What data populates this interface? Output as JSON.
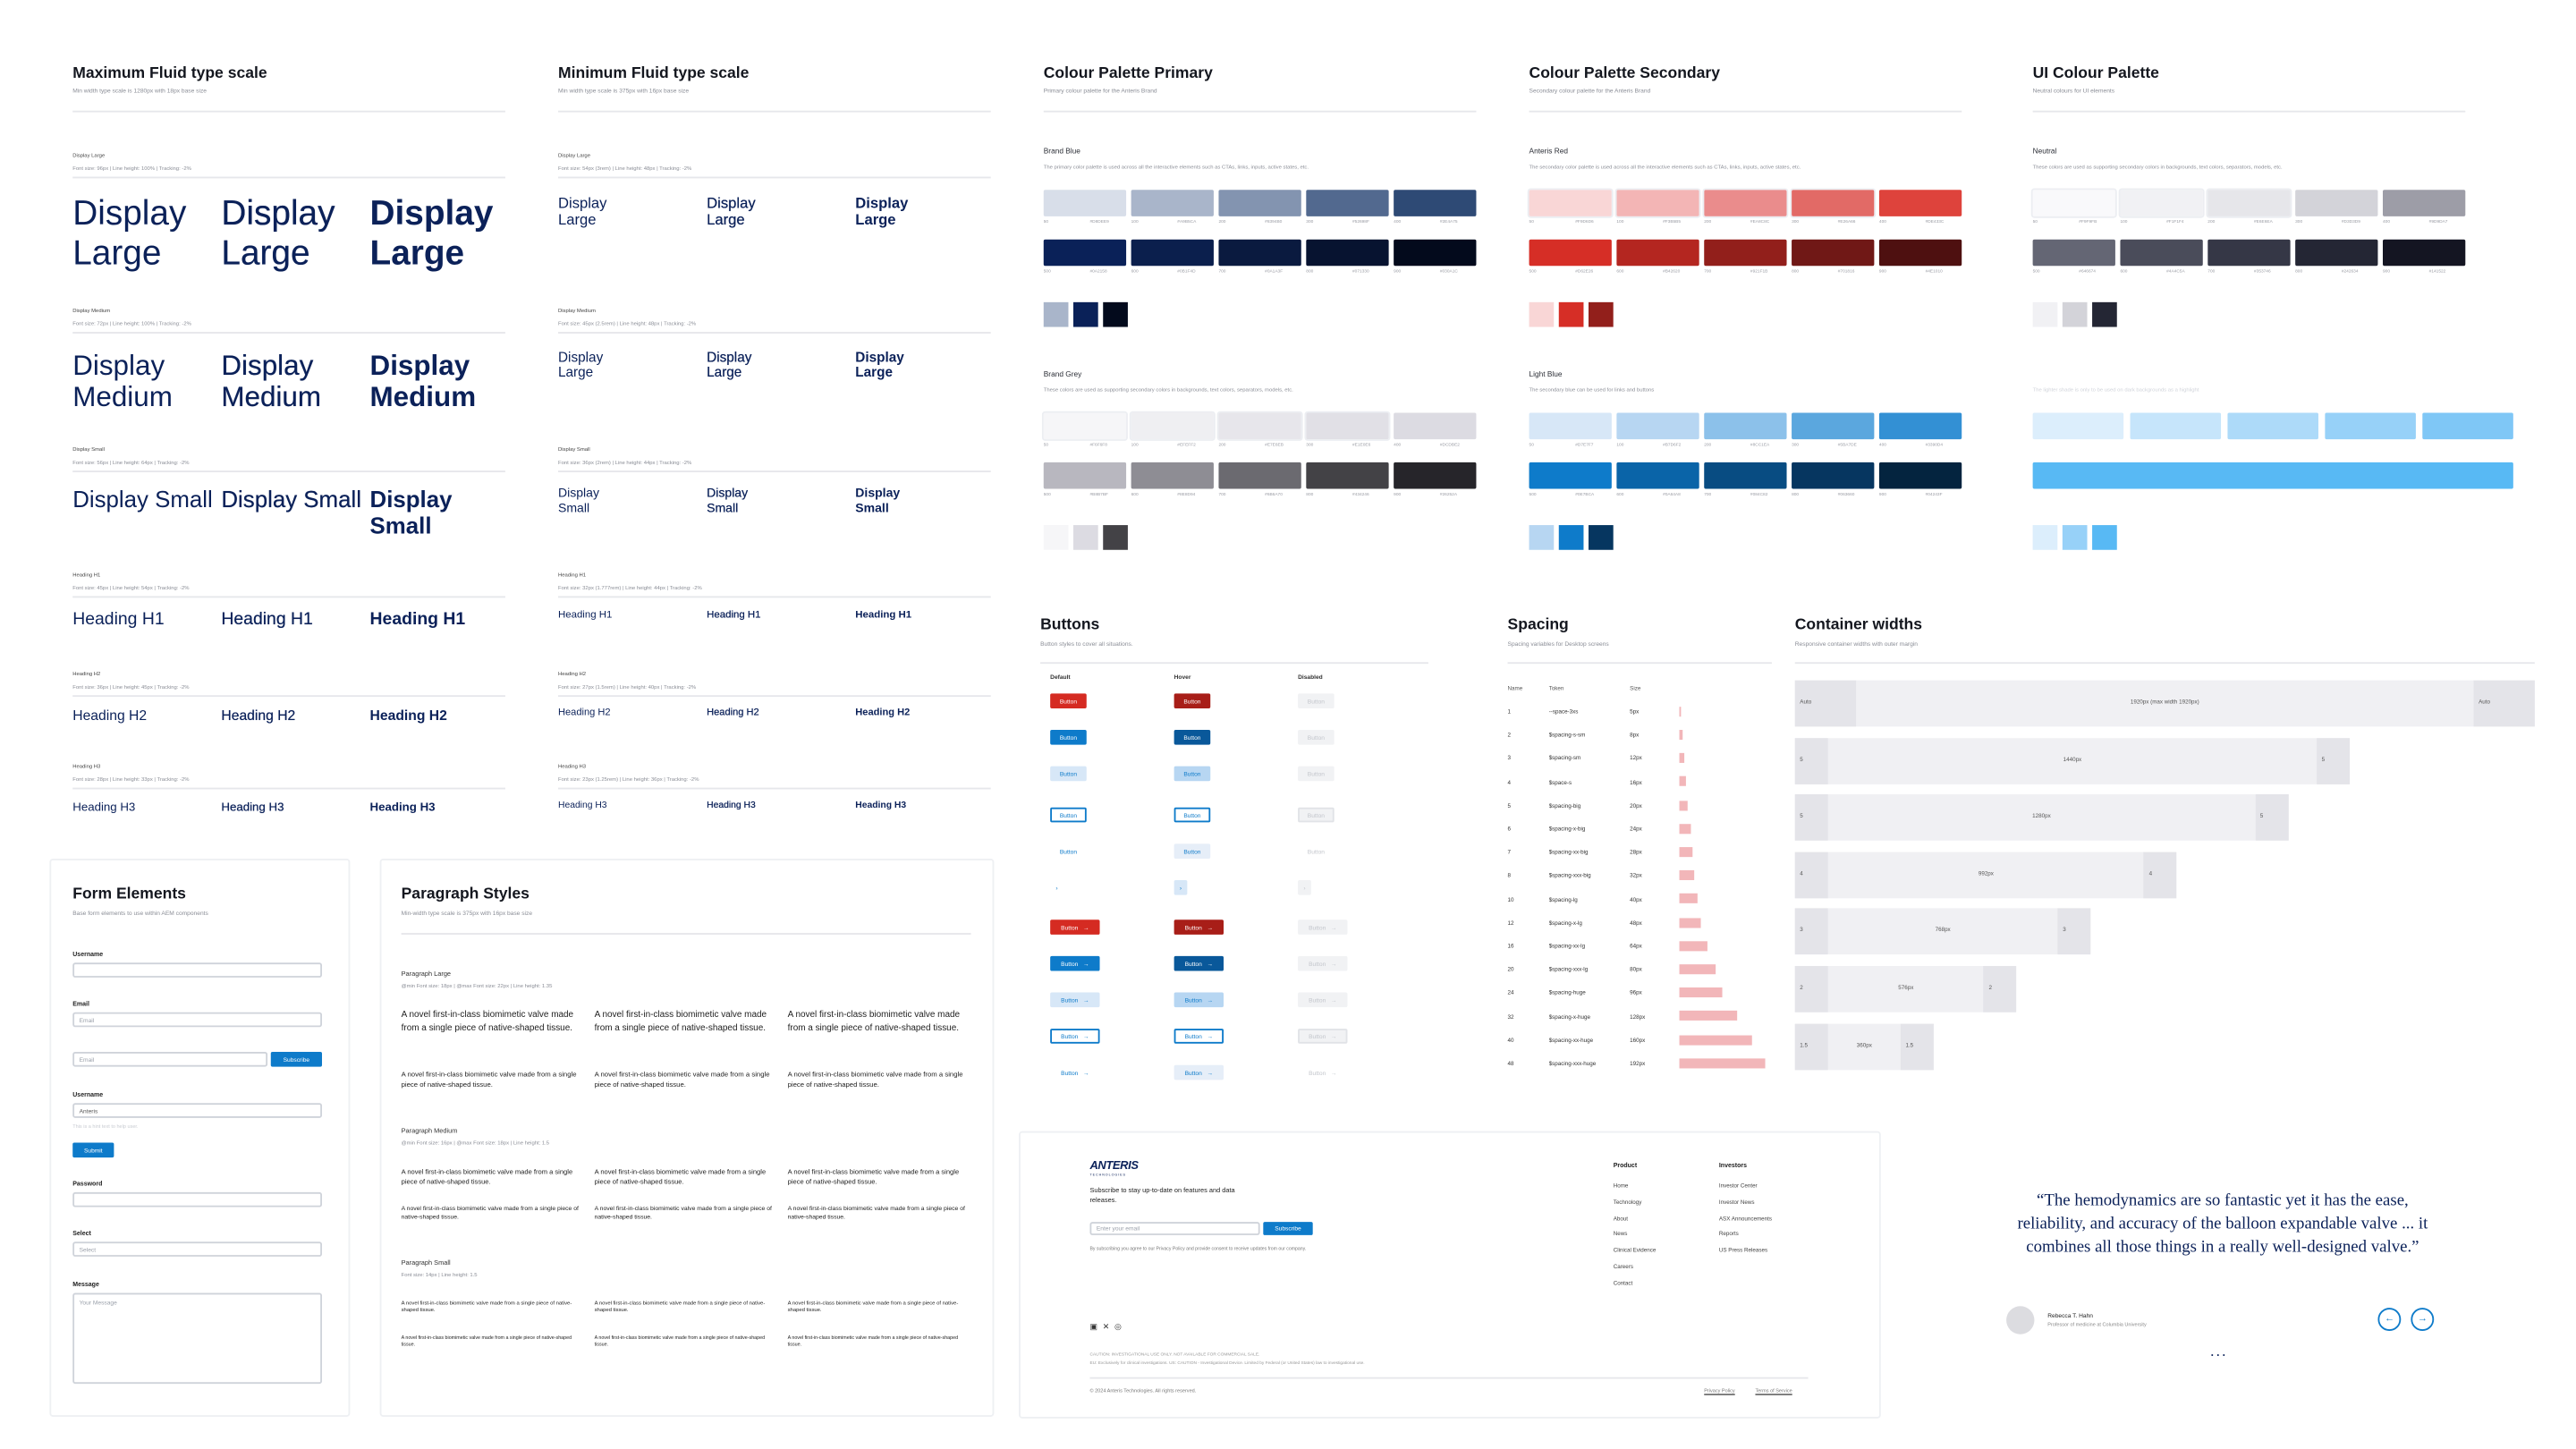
{
  "type_scales": [
    {
      "title": "Maximum Fluid type scale",
      "subtitle": "Min width type scale is 1280px with 18px base size",
      "rows": [
        {
          "name": "Display Large",
          "spec": "Font size: 96px | Line height: 100% | Tracking: -2%",
          "sample": "Display Large"
        },
        {
          "name": "Display Medium",
          "spec": "Font size: 72px | Line height: 100% | Tracking: -2%",
          "sample": "Display Medium"
        },
        {
          "name": "Display Small",
          "spec": "Font size: 56px | Line height: 64px | Tracking: -2%",
          "sample": "Display Small"
        },
        {
          "name": "Heading H1",
          "spec": "Font size: 45px | Line height: 54px | Tracking: -2%",
          "sample": "Heading H1"
        },
        {
          "name": "Heading H2",
          "spec": "Font size: 36px | Line height: 45px | Tracking: -2%",
          "sample": "Heading H2"
        },
        {
          "name": "Heading H3",
          "spec": "Font size: 28px | Line height: 33px | Tracking: -2%",
          "sample": "Heading H3"
        }
      ]
    },
    {
      "title": "Minimum Fluid type scale",
      "subtitle": "Min width type scale is 375px with 16px base size",
      "rows": [
        {
          "name": "Display Large",
          "spec": "Font size: 54px (3rem) | Line height: 48px | Tracking: -2%",
          "sample": "Display Large"
        },
        {
          "name": "Display Medium",
          "spec": "Font size: 45px (2.5rem) | Line height: 48px | Tracking: -2%",
          "sample": "Display Large"
        },
        {
          "name": "Display Small",
          "spec": "Font size: 36px (2rem) | Line height: 44px | Tracking: -2%",
          "sample": "Display Small"
        },
        {
          "name": "Heading H1",
          "spec": "Font size: 32px (1.777rem) | Line height: 44px | Tracking: -2%",
          "sample": "Heading H1"
        },
        {
          "name": "Heading H2",
          "spec": "Font size: 27px (1.5rem) | Line height: 40px | Tracking: -2%",
          "sample": "Heading H2"
        },
        {
          "name": "Heading H3",
          "spec": "Font size: 23px (1.25rem) | Line height: 36px | Tracking: -2%",
          "sample": "Heading H3"
        }
      ]
    }
  ],
  "palettes": [
    {
      "title": "Colour Palette Primary",
      "subtitle": "Primary colour palette for the Anteris Brand",
      "groups": [
        {
          "name": "Brand Blue",
          "description": "The primary color palette is used across all the interactive elements such as CTAs, links, inputs, active states, etc.",
          "rows": [
            [
              {
                "step": "50",
                "hex": "#D8DEE9"
              },
              {
                "step": "100",
                "hex": "#A9B5CA"
              },
              {
                "step": "200",
                "hex": "#8394B0"
              },
              {
                "step": "300",
                "hex": "#52698F"
              },
              {
                "step": "400",
                "hex": "#2E4A75"
              }
            ],
            [
              {
                "step": "500",
                "hex": "#0A2158"
              },
              {
                "step": "600",
                "hex": "#0B1F4D"
              },
              {
                "step": "700",
                "hex": "#0A1A3F"
              },
              {
                "step": "800",
                "hex": "#071330"
              },
              {
                "step": "900",
                "hex": "#030A1C"
              }
            ]
          ],
          "chips": [
            "#A9B5CA",
            "#0A2158",
            "#030A1C"
          ]
        },
        {
          "name": "Brand Grey",
          "description": "These colors are used as supporting secondary colors in backgrounds, text colors, separators, models, etc.",
          "rows": [
            [
              {
                "step": "50",
                "hex": "#F6F6F8"
              },
              {
                "step": "100",
                "hex": "#EFEFF2"
              },
              {
                "step": "200",
                "hex": "#E7E6EB"
              },
              {
                "step": "300",
                "hex": "#E1E0E6"
              },
              {
                "step": "400",
                "hex": "#DCDBE2"
              }
            ],
            [
              {
                "step": "500",
                "hex": "#B8B7BF"
              },
              {
                "step": "600",
                "hex": "#8E8D94"
              },
              {
                "step": "700",
                "hex": "#6B6A70"
              },
              {
                "step": "800",
                "hex": "#434246"
              },
              {
                "step": "900",
                "hex": "#26252A"
              }
            ]
          ],
          "chips": [
            "#F6F6F8",
            "#DCDBE2",
            "#434246"
          ]
        }
      ]
    },
    {
      "title": "Colour Palette Secondary",
      "subtitle": "Secondary colour palette for the Anteris Brand",
      "groups": [
        {
          "name": "Anteris Red",
          "description": "The secondary color palette is used across all the interactive elements such as CTAs, links, inputs, active states, etc.",
          "rows": [
            [
              {
                "step": "50",
                "hex": "#F9D6D6"
              },
              {
                "step": "100",
                "hex": "#F3B5B5"
              },
              {
                "step": "200",
                "hex": "#EA8C8C"
              },
              {
                "step": "300",
                "hex": "#E26A66"
              },
              {
                "step": "400",
                "hex": "#DE433C"
              }
            ],
            [
              {
                "step": "500",
                "hex": "#D62E26"
              },
              {
                "step": "600",
                "hex": "#B42620"
              },
              {
                "step": "700",
                "hex": "#921F1B"
              },
              {
                "step": "800",
                "hex": "#701816"
              },
              {
                "step": "900",
                "hex": "#4E1010"
              }
            ]
          ],
          "chips": [
            "#F9D6D6",
            "#D62E26",
            "#921F1B"
          ]
        },
        {
          "name": "Light Blue",
          "description": "The secondary blue can be used for links and buttons",
          "rows": [
            [
              {
                "step": "50",
                "hex": "#D7E7F7"
              },
              {
                "step": "100",
                "hex": "#B7D6F2"
              },
              {
                "step": "200",
                "hex": "#8CC1EA"
              },
              {
                "step": "300",
                "hex": "#5BA7DE"
              },
              {
                "step": "400",
                "hex": "#3390D4"
              }
            ],
            [
              {
                "step": "500",
                "hex": "#0E7BCA"
              },
              {
                "step": "600",
                "hex": "#0A64A8"
              },
              {
                "step": "700",
                "hex": "#084C82"
              },
              {
                "step": "800",
                "hex": "#063660"
              },
              {
                "step": "900",
                "hex": "#04243F"
              }
            ]
          ],
          "chips": [
            "#B7D6F2",
            "#0E7BCA",
            "#063660"
          ]
        }
      ]
    },
    {
      "title": "UI Colour Palette",
      "subtitle": "Neutral colours for UI elements",
      "groups": [
        {
          "name": "Neutral",
          "description": "These colors are used as supporting secondary colors in backgrounds, text colors, separators, models, etc.",
          "rows": [
            [
              {
                "step": "50",
                "hex": "#F9F9FB"
              },
              {
                "step": "100",
                "hex": "#F1F1F4"
              },
              {
                "step": "200",
                "hex": "#E6E6EA"
              },
              {
                "step": "300",
                "hex": "#D3D3D9"
              },
              {
                "step": "400",
                "hex": "#9D9DA7"
              }
            ],
            [
              {
                "step": "500",
                "hex": "#646674"
              },
              {
                "step": "600",
                "hex": "#4A4C5A"
              },
              {
                "step": "700",
                "hex": "#353746"
              },
              {
                "step": "800",
                "hex": "#242634"
              },
              {
                "step": "900",
                "hex": "#141522"
              }
            ]
          ],
          "chips": [
            "#F1F1F4",
            "#D3D3D9",
            "#242634"
          ]
        },
        {
          "name": "",
          "description": "The lighter shade is only to be used on dark backgrounds as a highlight",
          "rows": [
            [
              {
                "hex": "#DCEEFC"
              },
              {
                "hex": "#C6E5FB"
              },
              {
                "hex": "#ADDAF9"
              },
              {
                "hex": "#97D1F8"
              },
              {
                "hex": "#7FC7F6"
              }
            ],
            [
              {
                "hex": "#58B9F4"
              }
            ]
          ],
          "chips": [
            "#DCEEFC",
            "#97D1F8",
            "#58B9F4"
          ]
        }
      ]
    }
  ],
  "buttons": {
    "title": "Buttons",
    "subtitle": "Button styles to cover all situations.",
    "columns": [
      "Default",
      "Hover",
      "Disabled"
    ],
    "label": "Button"
  },
  "spacing": {
    "title": "Spacing",
    "subtitle": "Spacing variables for Desktop screens",
    "headers": [
      "Name",
      "Token",
      "Size"
    ],
    "rows": [
      {
        "name": "1",
        "token": "--space-3xs",
        "size": {
          "value": 5,
          "label": "5px"
        }
      },
      {
        "name": "2",
        "token": "$spacing-s-sm",
        "size": {
          "value": 8,
          "label": "8px"
        }
      },
      {
        "name": "3",
        "token": "$spacing-sm",
        "size": {
          "value": 12,
          "label": "12px"
        }
      },
      {
        "name": "4",
        "token": "$space-s",
        "size": {
          "value": 16,
          "label": "16px"
        }
      },
      {
        "name": "5",
        "token": "$spacing-big",
        "size": {
          "value": 20,
          "label": "20px"
        }
      },
      {
        "name": "6",
        "token": "$spacing-x-big",
        "size": {
          "value": 24,
          "label": "24px"
        }
      },
      {
        "name": "7",
        "token": "$spacing-xx-big",
        "size": {
          "value": 28,
          "label": "28px"
        }
      },
      {
        "name": "8",
        "token": "$spacing-xxx-big",
        "size": {
          "value": 32,
          "label": "32px"
        }
      },
      {
        "name": "10",
        "token": "$spacing-lg",
        "size": {
          "value": 40,
          "label": "40px"
        }
      },
      {
        "name": "12",
        "token": "$spacing-x-lg",
        "size": {
          "value": 48,
          "label": "48px"
        }
      },
      {
        "name": "16",
        "token": "$spacing-xx-lg",
        "size": {
          "value": 64,
          "label": "64px"
        }
      },
      {
        "name": "20",
        "token": "$spacing-xxx-lg",
        "size": {
          "value": 80,
          "label": "80px"
        }
      },
      {
        "name": "24",
        "token": "$spacing-huge",
        "size": {
          "value": 96,
          "label": "96px"
        }
      },
      {
        "name": "32",
        "token": "$spacing-x-huge",
        "size": {
          "value": 128,
          "label": "128px"
        }
      },
      {
        "name": "40",
        "token": "$spacing-xx-huge",
        "size": {
          "value": 160,
          "label": "160px"
        }
      },
      {
        "name": "48",
        "token": "$spacing-xxx-huge",
        "size": {
          "value": 192,
          "label": "192px"
        }
      }
    ]
  },
  "containers": {
    "title": "Container widths",
    "subtitle": "Responsive container widths with outer margin",
    "rows": [
      {
        "width": {
          "value": 1920,
          "label": "1920px (max width 1920px)"
        },
        "margin": "Auto"
      },
      {
        "width": {
          "value": 1440,
          "label": "1440px"
        },
        "margin": "5"
      },
      {
        "width": {
          "value": 1280,
          "label": "1280px"
        },
        "margin": "5"
      },
      {
        "width": {
          "value": 992,
          "label": "992px"
        },
        "margin": "4"
      },
      {
        "width": {
          "value": 768,
          "label": "768px"
        },
        "margin": "3"
      },
      {
        "width": {
          "value": 576,
          "label": "576px"
        },
        "margin": "2"
      },
      {
        "width": {
          "value": 360,
          "label": "360px"
        },
        "margin": "1.5"
      }
    ]
  },
  "form": {
    "title": "Form Elements",
    "subtitle": "Base form elements to use within AEM components",
    "username": "Username",
    "email": "Email",
    "email_placeholder": "Email",
    "subscribe": "Subscribe",
    "username_value": "Anteris",
    "helper": "This is a hint text to help user.",
    "submit": "Submit",
    "password": "Password",
    "select": "Select",
    "select_placeholder": "Select",
    "message": "Message",
    "message_placeholder": "Your Message"
  },
  "paragraphs": {
    "title": "Paragraph Styles",
    "subtitle": "Min-width type scale is 375px with 16px base size",
    "sample": "A novel first-in-class biomimetic valve made from a single piece of native-shaped tissue.",
    "styles": [
      {
        "name": "Paragraph Large",
        "spec": "@min Font size: 18px | @max Font size: 22px | Line height: 1.35"
      },
      {
        "name": "Paragraph Medium",
        "spec": "@min Font size: 16px | @max Font size: 18px | Line height: 1.5"
      },
      {
        "name": "Paragraph Small",
        "spec": "Font size: 14px | Line height: 1.5"
      }
    ]
  },
  "footer": {
    "logo": "ANTERIS",
    "logo_sub": "TECHNOLOGIES",
    "tagline": "Subscribe to stay up-to-date on features and data releases.",
    "email_placeholder": "Enter your email",
    "subscribe": "Subscribe",
    "consent": "By subscribing you agree to our Privacy Policy and provide consent to receive updates from our company.",
    "columns": [
      {
        "title": "Product",
        "links": [
          "Home",
          "Technology",
          "About",
          "News",
          "Clinical Evidence",
          "Careers",
          "Contact"
        ]
      },
      {
        "title": "Investors",
        "links": [
          "Investor Center",
          "Investor News",
          "ASX Announcements",
          "Reports",
          "US Press Releases"
        ]
      }
    ],
    "disclaimer": [
      "CAUTION: INVESTIGATIONAL USE ONLY. NOT AVAILABLE FOR COMMERCIAL SALE.",
      "EU: Exclusively for clinical investigations. US: CAUTION - Investigational Device. Limited by Federal (or United States) law to investigational use."
    ],
    "copyright": "© 2024 Anteris Technologies. All rights reserved.",
    "privacy": "Privacy Policy",
    "terms": "Terms of Service"
  },
  "quote": {
    "text": "“The hemodynamics are so fantastic yet it has the ease, reliability, and accuracy of the balloon expandable valve ... it combines all those things in a really well-designed valve.”",
    "author": "Rebecca T. Hahn",
    "role": "Professor of medicine at Columbia University"
  }
}
